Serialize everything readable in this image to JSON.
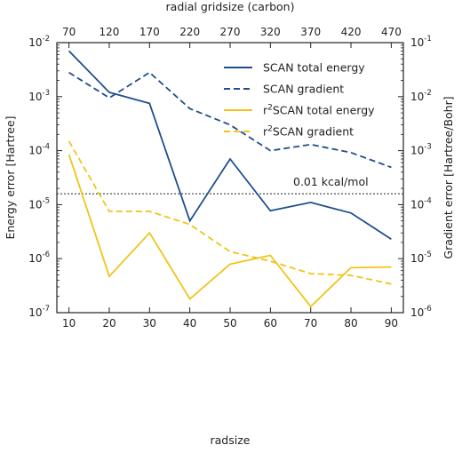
{
  "chart_data": {
    "type": "line",
    "title": "",
    "x": [
      10,
      20,
      30,
      40,
      50,
      60,
      70,
      80,
      90
    ],
    "xlabel": "radsize",
    "xlim": [
      7,
      93
    ],
    "xticks": [
      "10",
      "20",
      "30",
      "40",
      "50",
      "60",
      "70",
      "80",
      "90"
    ],
    "top_xlabel": "radial gridsize (carbon)",
    "top_xticks": [
      "70",
      "120",
      "170",
      "220",
      "270",
      "320",
      "370",
      "420",
      "470"
    ],
    "ylabel_left": "Energy error [Hartree]",
    "ylim_left": [
      1e-07,
      0.01
    ],
    "yticks_left": [
      {
        "base": "10",
        "exp": "-7"
      },
      {
        "base": "10",
        "exp": "-6"
      },
      {
        "base": "10",
        "exp": "-5"
      },
      {
        "base": "10",
        "exp": "-4"
      },
      {
        "base": "10",
        "exp": "-3"
      },
      {
        "base": "10",
        "exp": "-2"
      }
    ],
    "ylabel_right": "Gradient error [Hartree/Bohr]",
    "ylim_right": [
      1e-06,
      0.1
    ],
    "yticks_right": [
      {
        "base": "10",
        "exp": "-6"
      },
      {
        "base": "10",
        "exp": "-5"
      },
      {
        "base": "10",
        "exp": "-4"
      },
      {
        "base": "10",
        "exp": "-3"
      },
      {
        "base": "10",
        "exp": "-2"
      },
      {
        "base": "10",
        "exp": "-1"
      }
    ],
    "yscale": "log",
    "grid": false,
    "legend_position": "top-right",
    "series": [
      {
        "name": "SCAN total energy",
        "axis": "left",
        "style": "solid",
        "color": "#1f4e8c",
        "values": [
          0.007,
          0.0012,
          0.00075,
          5e-06,
          7e-05,
          7.7e-06,
          1.1e-05,
          7e-06,
          2.3e-06
        ]
      },
      {
        "name": "SCAN gradient",
        "axis": "right",
        "style": "dashed",
        "color": "#1f4e8c",
        "values": [
          0.028,
          0.0095,
          0.028,
          0.006,
          0.003,
          0.001,
          0.0013,
          0.00092,
          0.00049
        ]
      },
      {
        "name_prefix": "r",
        "name_sup": "2",
        "name_suffix": "SCAN total energy",
        "axis": "left",
        "style": "solid",
        "color": "#f0c419",
        "values": [
          8.5e-05,
          4.7e-07,
          3e-06,
          1.8e-07,
          7.9e-07,
          1.15e-06,
          1.3e-07,
          6.8e-07,
          7e-07
        ]
      },
      {
        "name_prefix": "r",
        "name_sup": "2",
        "name_suffix": "SCAN gradient",
        "axis": "right",
        "style": "dashed",
        "color": "#f0c419",
        "values": [
          0.0015,
          7.5e-05,
          7.5e-05,
          4.3e-05,
          1.35e-05,
          9e-06,
          5.3e-06,
          4.9e-06,
          3.4e-06
        ]
      }
    ],
    "reference_line": {
      "label": "0.01 kcal/mol",
      "value": 1.59e-05,
      "axis": "left",
      "style": "dotted"
    }
  }
}
